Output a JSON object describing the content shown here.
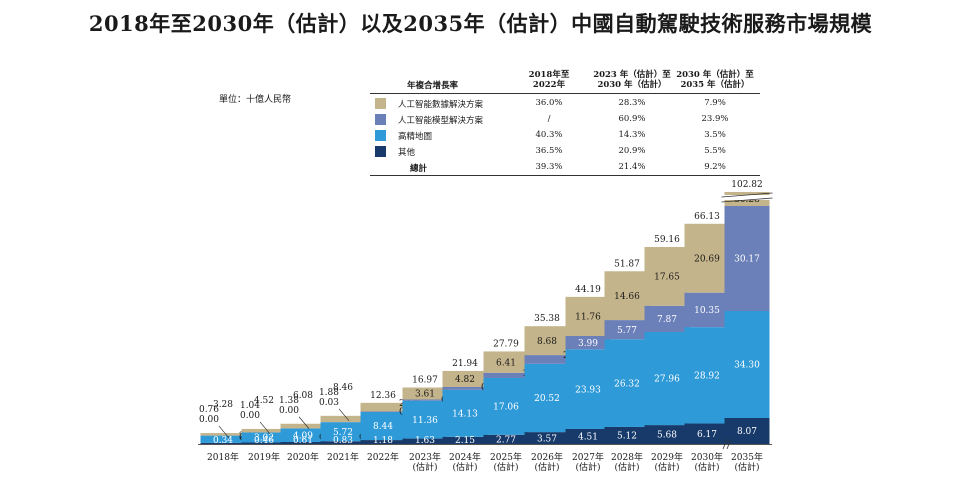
{
  "title": "2018年至2030年（估計）以及2035年（估計）中國自動駕駛技術服務市場規模",
  "unit": "單位：十億人民幣",
  "cagr_table": {
    "header_label": "年複合增長率",
    "periods": [
      "2018年至\n2022年",
      "2023 年（估計）至\n2030 年（估計）",
      "2030 年（估計）至\n2035 年（估計）"
    ],
    "rows": [
      {
        "label": "人工智能數據解決方案",
        "color": "#c4b48b",
        "values": [
          "36.0%",
          "28.3%",
          "7.9%"
        ]
      },
      {
        "label": "人工智能模型解決方案",
        "color": "#6b7fb8",
        "values": [
          "/",
          "60.9%",
          "23.9%"
        ]
      },
      {
        "label": "高精地圖",
        "color": "#2f9ad8",
        "values": [
          "40.3%",
          "14.3%",
          "3.5%"
        ]
      },
      {
        "label": "其他",
        "color": "#173a6b",
        "values": [
          "36.5%",
          "20.9%",
          "5.5%"
        ]
      }
    ],
    "total_label": "總計",
    "total_values": [
      "39.3%",
      "21.4%",
      "9.2%"
    ]
  },
  "chart_data": {
    "type": "bar",
    "stacked": true,
    "categories": [
      "2018年",
      "2019年",
      "2020年",
      "2021年",
      "2022年",
      "2023年\n(估計)",
      "2024年\n(估計)",
      "2025年\n(估計)",
      "2026年\n(估計)",
      "2027年\n(估計)",
      "2028年\n(估計)",
      "2029年\n(估計)",
      "2030年\n(估計)",
      "2035年\n(估計)"
    ],
    "series": [
      {
        "name": "其他",
        "color": "#173a6b",
        "values": [
          0.34,
          0.46,
          0.61,
          0.83,
          1.18,
          1.63,
          2.15,
          2.77,
          3.57,
          4.51,
          5.12,
          5.68,
          6.17,
          8.07
        ]
      },
      {
        "name": "高精地圖",
        "color": "#2f9ad8",
        "values": [
          2.18,
          3.02,
          4.09,
          5.72,
          8.44,
          11.36,
          14.13,
          17.06,
          20.52,
          23.93,
          26.32,
          27.96,
          28.92,
          34.3
        ]
      },
      {
        "name": "人工智能模型解決方案",
        "color": "#6b7fb8",
        "values": [
          0.0,
          0.0,
          0.0,
          0.03,
          0.14,
          0.37,
          0.84,
          1.55,
          2.61,
          3.99,
          5.77,
          7.87,
          10.35,
          30.17
        ]
      },
      {
        "name": "人工智能數據解決方案",
        "color": "#c4b48b",
        "values": [
          0.76,
          1.04,
          1.38,
          1.88,
          2.6,
          3.61,
          4.82,
          6.41,
          8.68,
          11.76,
          14.66,
          17.65,
          20.69,
          30.28
        ]
      }
    ],
    "totals": [
      3.28,
      4.52,
      6.08,
      8.46,
      12.36,
      16.97,
      21.94,
      27.79,
      35.38,
      44.19,
      51.87,
      59.16,
      66.13,
      102.82
    ],
    "axis_break_on": "2035年\n(估計)"
  }
}
